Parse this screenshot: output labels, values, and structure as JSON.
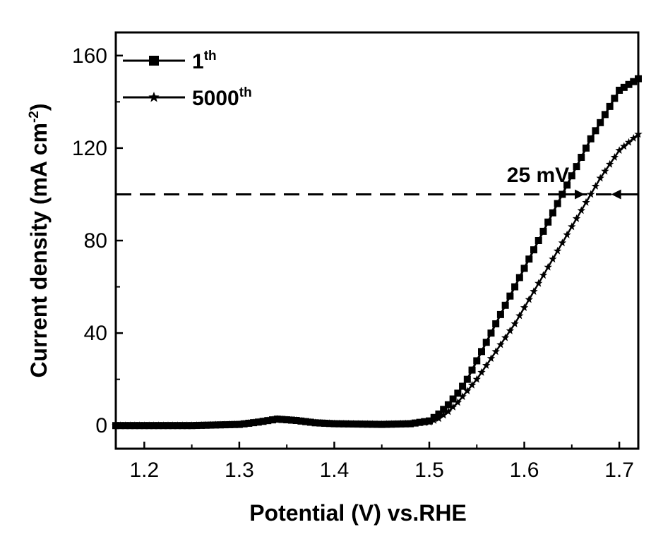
{
  "chart_data": {
    "type": "line",
    "title": "",
    "xlabel": "Potential (V) vs.RHE",
    "ylabel": {
      "main": "Current density (mA cm",
      "sup": "-2",
      "close": ")"
    },
    "xlim": [
      1.17,
      1.72
    ],
    "ylim": [
      -10,
      170
    ],
    "xticks": [
      1.2,
      1.3,
      1.4,
      1.5,
      1.6,
      1.7
    ],
    "xtick_labels": [
      "1.2",
      "1.3",
      "1.4",
      "1.5",
      "1.6",
      "1.7"
    ],
    "yticks": [
      0,
      40,
      80,
      120,
      160
    ],
    "ytick_labels": [
      "0",
      "40",
      "80",
      "120",
      "160"
    ],
    "grid": false,
    "legend_position": "top-left",
    "legend": [
      {
        "base": "1",
        "sup": "th",
        "marker": "square"
      },
      {
        "base": "5000",
        "sup": "th",
        "marker": "star"
      }
    ],
    "series": [
      {
        "marker": "square",
        "x": [
          1.17,
          1.2,
          1.25,
          1.3,
          1.32,
          1.34,
          1.36,
          1.38,
          1.4,
          1.45,
          1.48,
          1.5,
          1.51,
          1.52,
          1.53,
          1.54,
          1.55,
          1.56,
          1.57,
          1.58,
          1.59,
          1.6,
          1.61,
          1.62,
          1.63,
          1.64,
          1.65,
          1.66,
          1.67,
          1.68,
          1.69,
          1.7,
          1.72
        ],
        "y": [
          0,
          0,
          0,
          0.5,
          1.5,
          2.8,
          2.2,
          1.2,
          0.8,
          0.5,
          0.8,
          2,
          5,
          9,
          14,
          20,
          28,
          36,
          44,
          52,
          60,
          68,
          76,
          84,
          92,
          100,
          108,
          116,
          124,
          131,
          138,
          145,
          150
        ]
      },
      {
        "marker": "star",
        "x": [
          1.17,
          1.2,
          1.25,
          1.3,
          1.32,
          1.34,
          1.36,
          1.38,
          1.4,
          1.45,
          1.48,
          1.5,
          1.51,
          1.52,
          1.53,
          1.54,
          1.55,
          1.56,
          1.57,
          1.58,
          1.59,
          1.6,
          1.61,
          1.62,
          1.63,
          1.64,
          1.65,
          1.66,
          1.67,
          1.68,
          1.69,
          1.7,
          1.72
        ],
        "y": [
          0,
          0,
          0,
          0.5,
          1.5,
          2.8,
          2.2,
          1.2,
          0.8,
          0.5,
          0.8,
          1.5,
          3,
          6,
          10,
          15,
          20,
          26,
          32,
          38,
          44,
          51,
          58,
          65,
          72,
          79,
          86,
          93,
          100,
          107,
          113,
          119,
          126
        ]
      }
    ],
    "reference_line": {
      "y": 100,
      "style": "dashed"
    },
    "annotation": {
      "text": "25 mV",
      "x_from": 1.665,
      "x_to": 1.69,
      "y": 100
    }
  }
}
